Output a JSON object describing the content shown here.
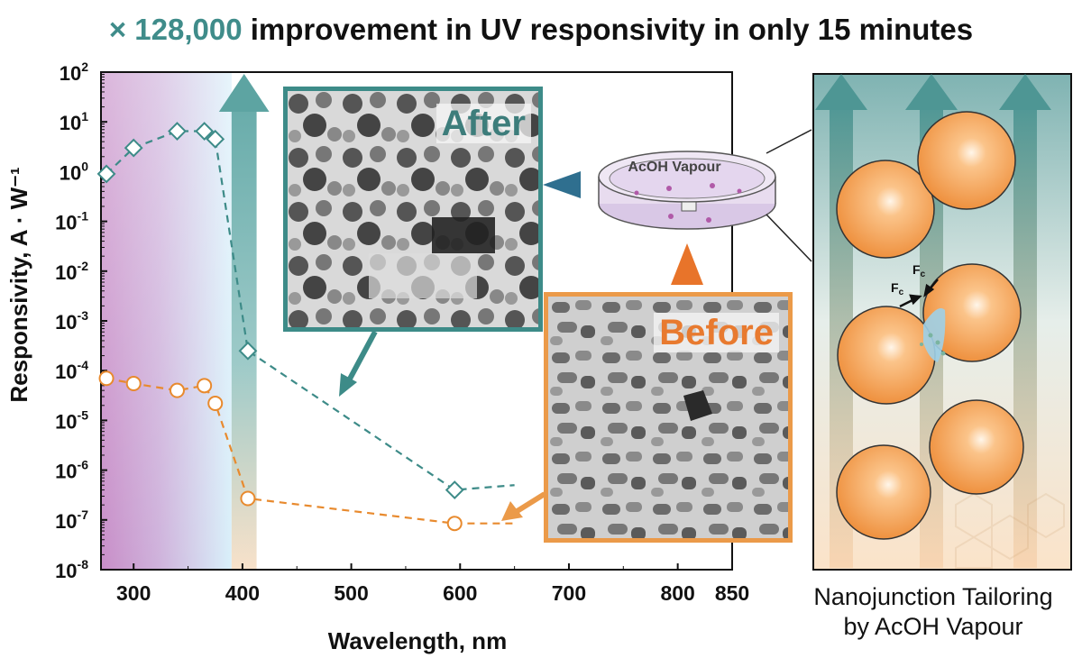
{
  "headline": {
    "accent": "× 128,000",
    "rest": "improvement in UV responsivity in only 15 minutes"
  },
  "colors": {
    "after": "#3d8b88",
    "before": "#e88a2e",
    "uv_band": "#c88ec8",
    "vis_band": "#d7ecf5",
    "arrow_teal": "#5aa3a1",
    "particle": "#f2a25a"
  },
  "chart_data": {
    "type": "line",
    "xlabel": "Wavelength, nm",
    "ylabel": "Responsivity, A · W⁻¹",
    "xlim": [
      270,
      850
    ],
    "ylim": [
      1e-08,
      100
    ],
    "yscale": "log",
    "x_ticks": [
      300,
      400,
      500,
      600,
      700,
      800,
      850
    ],
    "y_ticks": [
      {
        "base": "10",
        "exp": "-8",
        "value": 1e-08
      },
      {
        "base": "10",
        "exp": "-7",
        "value": 1e-07
      },
      {
        "base": "10",
        "exp": "-6",
        "value": 1e-06
      },
      {
        "base": "10",
        "exp": "-5",
        "value": 1e-05
      },
      {
        "base": "10",
        "exp": "-4",
        "value": 0.0001
      },
      {
        "base": "10",
        "exp": "-3",
        "value": 0.001
      },
      {
        "base": "10",
        "exp": "-2",
        "value": 0.01
      },
      {
        "base": "10",
        "exp": "-1",
        "value": 0.1
      },
      {
        "base": "10",
        "exp": "0",
        "value": 1
      },
      {
        "base": "10",
        "exp": "1",
        "value": 10
      },
      {
        "base": "10",
        "exp": "2",
        "value": 100
      }
    ],
    "series": [
      {
        "marker": "diamond",
        "color": "#3d8b88",
        "x": [
          275,
          300,
          340,
          365,
          375,
          405,
          595,
          650
        ],
        "y": [
          0.9,
          3.0,
          6.5,
          6.5,
          4.5,
          0.00025,
          4e-07,
          5e-07
        ],
        "marker_mask": [
          true,
          true,
          true,
          true,
          true,
          true,
          true,
          false
        ]
      },
      {
        "marker": "circle",
        "color": "#e88a2e",
        "x": [
          275,
          300,
          340,
          365,
          375,
          405,
          595,
          650
        ],
        "y": [
          7e-05,
          5.5e-05,
          4e-05,
          5e-05,
          2.2e-05,
          2.7e-07,
          8.5e-08,
          8.5e-08
        ],
        "marker_mask": [
          true,
          true,
          true,
          true,
          true,
          true,
          true,
          false
        ]
      }
    ],
    "bands": [
      {
        "from": 270,
        "to": 390,
        "kind": "uv"
      },
      {
        "from": 390,
        "to": 413,
        "kind": "highlight"
      }
    ]
  },
  "insets": {
    "after_label": "After",
    "before_label": "Before"
  },
  "dish": {
    "label": "AcOH Vapour"
  },
  "panel": {
    "force_label_main": "F",
    "force_label_sub": "c",
    "caption_line1": "Nanojunction Tailoring",
    "caption_line2": "by AcOH Vapour"
  }
}
